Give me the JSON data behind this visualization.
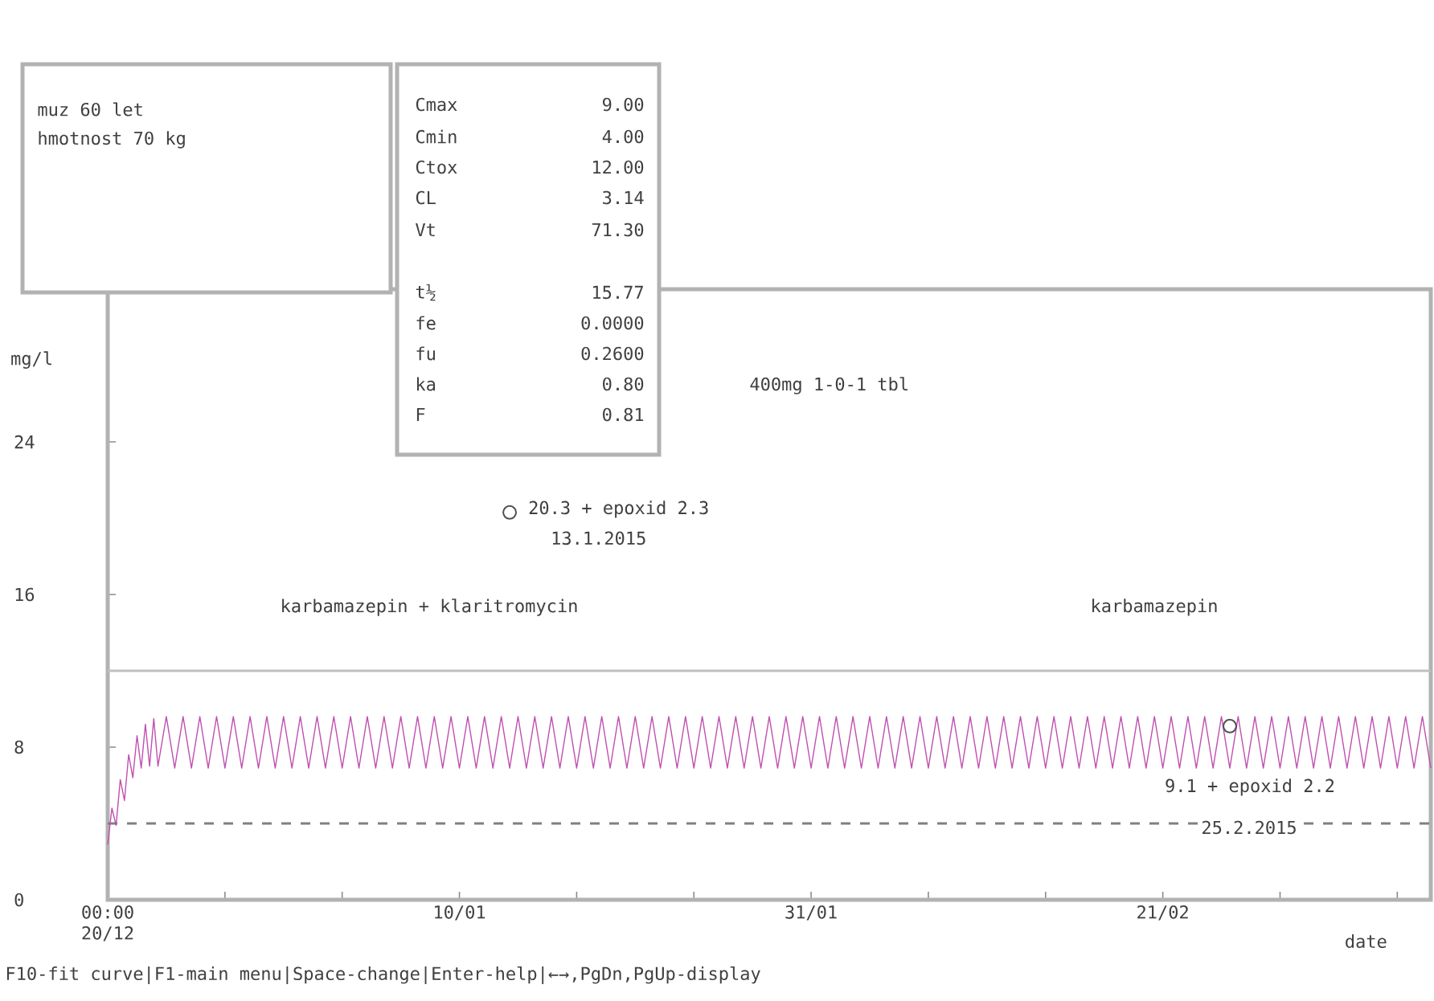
{
  "chart_data": {
    "type": "line",
    "xlabel": "date",
    "ylabel": "mg/l",
    "xlim": [
      "2014-12-20",
      "2015-03-09"
    ],
    "ylim": [
      0,
      32
    ],
    "xticks": [
      {
        "value": "2014-12-20",
        "label": "00:00 20/12"
      },
      {
        "value": "2014-12-27",
        "label": null
      },
      {
        "value": "2015-01-03",
        "label": null
      },
      {
        "value": "2015-01-10",
        "label": "10/01"
      },
      {
        "value": "2015-01-17",
        "label": null
      },
      {
        "value": "2015-01-24",
        "label": null
      },
      {
        "value": "2015-01-31",
        "label": "31/01"
      },
      {
        "value": "2015-02-07",
        "label": null
      },
      {
        "value": "2015-02-14",
        "label": null
      },
      {
        "value": "2015-02-21",
        "label": "21/02"
      },
      {
        "value": "2015-02-28",
        "label": null
      },
      {
        "value": "2015-03-07",
        "label": null
      }
    ],
    "yticks": [
      0,
      8,
      16,
      24
    ],
    "series": [
      {
        "color": "#c050b0",
        "x": [
          "2014-12-20T00:00",
          "2014-12-20T06:00",
          "2014-12-20T12:00",
          "2014-12-20T18:00",
          "2014-12-21T00:00",
          "2014-12-21T06:00",
          "2014-12-21T12:00",
          "2014-12-21T18:00",
          "2014-12-22T00:00",
          "2014-12-22T06:00",
          "2014-12-22T12:00",
          "2014-12-22T18:00",
          "2014-12-23T00:00",
          "2014-12-23T12:00",
          "2014-12-24T00:00",
          "2014-12-24T12:00",
          "2014-12-25T00:00",
          "2014-12-25T12:00",
          "2014-12-26T00:00",
          "2014-12-26T12:00",
          "2014-12-27T00:00",
          "2014-12-27T12:00",
          "2014-12-28T00:00",
          "2014-12-28T12:00",
          "2014-12-29T00:00",
          "2014-12-29T12:00",
          "2014-12-30T00:00",
          "2014-12-30T12:00",
          "2014-12-31T00:00",
          "2014-12-31T12:00",
          "2015-01-01T00:00",
          "2015-01-01T12:00",
          "2015-01-02T00:00",
          "2015-01-02T12:00",
          "2015-01-03T00:00",
          "2015-01-03T12:00",
          "2015-01-04T00:00",
          "2015-01-04T12:00",
          "2015-01-05T00:00",
          "2015-01-05T12:00",
          "2015-01-06T00:00",
          "2015-01-06T12:00",
          "2015-01-07T00:00",
          "2015-01-07T12:00",
          "2015-01-08T00:00",
          "2015-01-08T12:00",
          "2015-01-09T00:00",
          "2015-01-09T12:00",
          "2015-01-10T00:00",
          "2015-01-10T12:00",
          "2015-01-11T00:00",
          "2015-01-11T12:00",
          "2015-01-12T00:00",
          "2015-01-12T12:00",
          "2015-01-13T00:00",
          "2015-01-13T12:00",
          "2015-01-14T00:00",
          "2015-01-14T12:00",
          "2015-01-15T00:00",
          "2015-01-15T12:00",
          "2015-01-16T00:00",
          "2015-01-16T12:00",
          "2015-01-17T00:00",
          "2015-01-17T12:00",
          "2015-01-18T00:00",
          "2015-01-18T12:00",
          "2015-01-19T00:00",
          "2015-01-19T12:00",
          "2015-01-20T00:00",
          "2015-01-20T12:00",
          "2015-01-21T00:00",
          "2015-01-21T12:00",
          "2015-01-22T00:00",
          "2015-01-22T12:00",
          "2015-01-23T00:00",
          "2015-01-23T12:00",
          "2015-01-24T00:00",
          "2015-01-24T12:00",
          "2015-01-25T00:00",
          "2015-01-25T12:00",
          "2015-01-26T00:00",
          "2015-01-26T12:00",
          "2015-01-27T00:00",
          "2015-01-27T12:00",
          "2015-01-28T00:00",
          "2015-01-28T12:00",
          "2015-01-29T00:00",
          "2015-01-29T12:00",
          "2015-01-30T00:00",
          "2015-01-30T12:00",
          "2015-01-31T00:00",
          "2015-01-31T12:00",
          "2015-02-01T00:00",
          "2015-02-01T12:00",
          "2015-02-02T00:00",
          "2015-02-02T12:00",
          "2015-02-03T00:00",
          "2015-02-03T12:00",
          "2015-02-04T00:00",
          "2015-02-04T12:00",
          "2015-02-05T00:00",
          "2015-02-05T12:00",
          "2015-02-06T00:00",
          "2015-02-06T12:00",
          "2015-02-07T00:00",
          "2015-02-07T12:00",
          "2015-02-08T00:00",
          "2015-02-08T12:00",
          "2015-02-09T00:00",
          "2015-02-09T12:00",
          "2015-02-10T00:00",
          "2015-02-10T12:00",
          "2015-02-11T00:00",
          "2015-02-11T12:00",
          "2015-02-12T00:00",
          "2015-02-12T12:00",
          "2015-02-13T00:00",
          "2015-02-13T12:00",
          "2015-02-14T00:00",
          "2015-02-14T12:00",
          "2015-02-15T00:00",
          "2015-02-15T12:00",
          "2015-02-16T00:00",
          "2015-02-16T12:00",
          "2015-02-17T00:00",
          "2015-02-17T12:00",
          "2015-02-18T00:00",
          "2015-02-18T12:00",
          "2015-02-19T00:00",
          "2015-02-19T12:00",
          "2015-02-20T00:00",
          "2015-02-20T12:00",
          "2015-02-21T00:00",
          "2015-02-21T12:00",
          "2015-02-22T00:00",
          "2015-02-22T12:00",
          "2015-02-23T00:00",
          "2015-02-23T12:00",
          "2015-02-24T00:00",
          "2015-02-24T12:00",
          "2015-02-25T00:00",
          "2015-02-25T12:00",
          "2015-02-26T00:00",
          "2015-02-26T12:00",
          "2015-02-27T00:00",
          "2015-02-27T12:00",
          "2015-02-28T00:00",
          "2015-02-28T12:00",
          "2015-03-01T00:00",
          "2015-03-01T12:00",
          "2015-03-02T00:00",
          "2015-03-02T12:00",
          "2015-03-03T00:00",
          "2015-03-03T12:00",
          "2015-03-04T00:00",
          "2015-03-04T12:00",
          "2015-03-05T00:00",
          "2015-03-05T12:00",
          "2015-03-06T00:00",
          "2015-03-06T12:00",
          "2015-03-07T00:00",
          "2015-03-07T12:00",
          "2015-03-08T00:00",
          "2015-03-08T12:00",
          "2015-03-09T00:00"
        ],
        "values": [
          2.9,
          4.8,
          3.9,
          6.3,
          5.2,
          7.6,
          6.4,
          8.6,
          6.9,
          9.2,
          7.0,
          9.5,
          7.0,
          9.6,
          6.9,
          9.6,
          6.9,
          9.6,
          6.9,
          9.6,
          6.9,
          9.6,
          6.9,
          9.6,
          6.9,
          9.6,
          6.9,
          9.6,
          6.9,
          9.6,
          6.9,
          9.6,
          6.9,
          9.6,
          6.9,
          9.6,
          6.9,
          9.6,
          6.9,
          9.6,
          6.9,
          9.6,
          6.9,
          9.6,
          6.9,
          9.6,
          6.9,
          9.6,
          6.9,
          9.6,
          6.9,
          9.6,
          6.9,
          9.6,
          6.9,
          9.6,
          6.9,
          9.6,
          6.9,
          9.6,
          6.9,
          9.6,
          6.9,
          9.6,
          6.9,
          9.6,
          6.9,
          9.6,
          6.9,
          9.6,
          6.9,
          9.6,
          6.9,
          9.6,
          6.9,
          9.6,
          6.9,
          9.6,
          6.9,
          9.6,
          6.9,
          9.6,
          6.9,
          9.6,
          6.9,
          9.6,
          6.9,
          9.6,
          6.9,
          9.6,
          6.9,
          9.6,
          6.9,
          9.6,
          6.9,
          9.6,
          6.9,
          9.6,
          6.9,
          9.6,
          6.9,
          9.6,
          6.9,
          9.6,
          6.9,
          9.6,
          6.9,
          9.6,
          6.9,
          9.6,
          6.9,
          9.6,
          6.9,
          9.6,
          6.9,
          9.6,
          6.9,
          9.6,
          6.9,
          9.6,
          6.9,
          9.6,
          6.9,
          9.6,
          6.9,
          9.6,
          6.9,
          9.6,
          6.9,
          9.6,
          6.9,
          9.6,
          6.9,
          9.6,
          6.9,
          9.6,
          6.9,
          9.6,
          6.9,
          9.6,
          6.9,
          9.6,
          6.9,
          9.6,
          6.9,
          9.6,
          6.9,
          9.6,
          6.9,
          9.6,
          6.9,
          9.6,
          6.9,
          9.6,
          6.9,
          9.6,
          6.9,
          9.6,
          6.9,
          9.6,
          6.9,
          9.6,
          6.9,
          9.6,
          6.9
        ]
      },
      {
        "type": "scatter",
        "color": "#505050",
        "marker": "circle",
        "x": [
          "2015-01-13",
          "2015-02-25"
        ],
        "values": [
          20.3,
          9.1
        ]
      }
    ],
    "ref_lines": [
      {
        "axis": "y",
        "value": 12,
        "color": "#c0c0c0",
        "line_style": "solid"
      },
      {
        "axis": "y",
        "value": 4,
        "color": "#808080",
        "line_style": "dashed"
      }
    ],
    "annotations": [
      {
        "text": "20.3 + epoxid 2.3",
        "x": "2015-01-13",
        "y": 20.3
      },
      {
        "text": "13.1.2015",
        "x": "2015-01-13",
        "y": 20.3
      },
      {
        "text": "9.1 + epoxid 2.2",
        "x": "2015-02-25",
        "y": 9.1
      },
      "25.2.2015",
      "karbamazepin + klaritromycin",
      "karbamazepin",
      "400mg 1-0-1 tbl",
      "muz 60 let",
      "hmotnost 70 kg",
      "Cmax",
      "9.00",
      "Cmin",
      "4.00",
      "Ctox",
      "12.00",
      "CL",
      "3.14",
      "Vt",
      "71.30",
      "t½",
      "15.77",
      "fe",
      "0.0000",
      "fu",
      "0.2600",
      "ka",
      "0.80",
      "F",
      "0.81",
      "F10-fit curve|F1-main menu|Space-change|Enter-help|←→,PgDn,PgUp-display"
    ]
  }
}
